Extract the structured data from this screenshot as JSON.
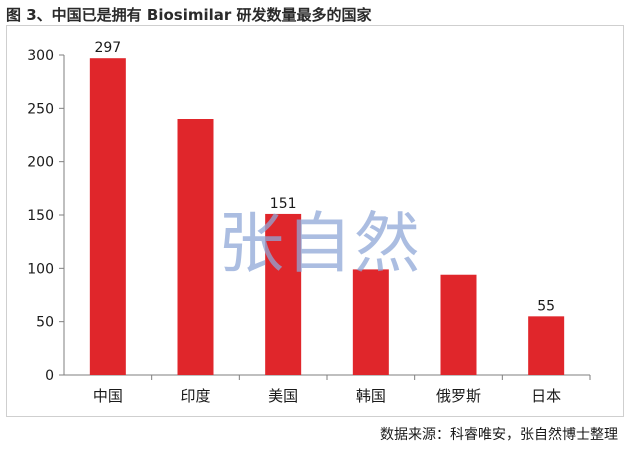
{
  "title": "图 3、中国已是拥有 Biosimilar 研发数量最多的国家",
  "source": "数据来源：科睿唯安，张自然博士整理",
  "watermark": "张自然",
  "colors": {
    "bar": "#e0262b",
    "axis": "#7f7f7f"
  },
  "chart_data": {
    "type": "bar",
    "title": "图 3、中国已是拥有 Biosimilar 研发数量最多的国家",
    "xlabel": "",
    "ylabel": "",
    "categories": [
      "中国",
      "印度",
      "美国",
      "韩国",
      "俄罗斯",
      "日本"
    ],
    "values": [
      297,
      240,
      151,
      99,
      94,
      55
    ],
    "data_labels": [
      "297",
      "",
      "151",
      "",
      "",
      "55"
    ],
    "ylim": [
      0,
      300
    ],
    "yticks": [
      0,
      50,
      100,
      150,
      200,
      250,
      300
    ],
    "grid": false,
    "legend": "none"
  }
}
